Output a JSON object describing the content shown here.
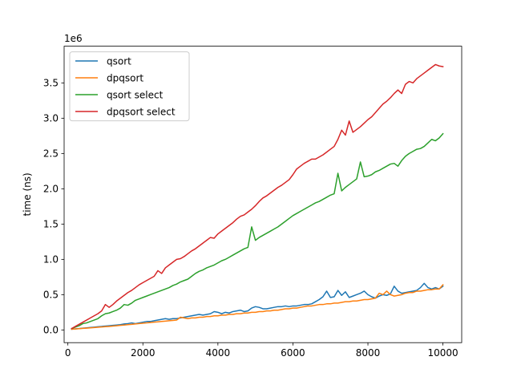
{
  "chart_data": {
    "type": "line",
    "title": "",
    "xlabel": "",
    "ylabel": "time (ns)",
    "y_scale_label": "1e6",
    "xlim": [
      -100,
      10500
    ],
    "ylim": [
      -0.18,
      4.02
    ],
    "xticks": [
      0,
      2000,
      4000,
      6000,
      8000,
      10000
    ],
    "xtick_labels": [
      "0",
      "2000",
      "4000",
      "6000",
      "8000",
      "10000"
    ],
    "yticks": [
      0.0,
      0.5,
      1.0,
      1.5,
      2.0,
      2.5,
      3.0,
      3.5
    ],
    "ytick_labels": [
      "0.0",
      "0.5",
      "1.0",
      "1.5",
      "2.0",
      "2.5",
      "3.0",
      "3.5"
    ],
    "grid": false,
    "legend_position": "upper-left",
    "x": [
      100,
      200,
      300,
      400,
      500,
      600,
      700,
      800,
      900,
      1000,
      1100,
      1200,
      1300,
      1400,
      1500,
      1600,
      1700,
      1800,
      1900,
      2000,
      2100,
      2200,
      2300,
      2400,
      2500,
      2600,
      2700,
      2800,
      2900,
      3000,
      3100,
      3200,
      3300,
      3400,
      3500,
      3600,
      3700,
      3800,
      3900,
      4000,
      4100,
      4200,
      4300,
      4400,
      4500,
      4600,
      4700,
      4800,
      4900,
      5000,
      5100,
      5200,
      5300,
      5400,
      5500,
      5600,
      5700,
      5800,
      5900,
      6000,
      6100,
      6200,
      6300,
      6400,
      6500,
      6600,
      6700,
      6800,
      6900,
      7000,
      7100,
      7200,
      7300,
      7400,
      7500,
      7600,
      7700,
      7800,
      7900,
      8000,
      8100,
      8200,
      8300,
      8400,
      8500,
      8600,
      8700,
      8800,
      8900,
      9000,
      9100,
      9200,
      9300,
      9400,
      9500,
      9600,
      9700,
      9800,
      9900,
      10000
    ],
    "series": [
      {
        "name": "qsort",
        "color": "#1f77b4",
        "values": [
          0.01,
          0.015,
          0.02,
          0.025,
          0.03,
          0.035,
          0.04,
          0.045,
          0.05,
          0.055,
          0.06,
          0.065,
          0.07,
          0.075,
          0.085,
          0.09,
          0.1,
          0.09,
          0.1,
          0.11,
          0.12,
          0.12,
          0.13,
          0.14,
          0.15,
          0.16,
          0.15,
          0.16,
          0.16,
          0.17,
          0.18,
          0.19,
          0.2,
          0.21,
          0.22,
          0.21,
          0.22,
          0.23,
          0.26,
          0.25,
          0.23,
          0.25,
          0.24,
          0.26,
          0.27,
          0.28,
          0.26,
          0.27,
          0.31,
          0.33,
          0.32,
          0.3,
          0.3,
          0.31,
          0.32,
          0.33,
          0.33,
          0.34,
          0.33,
          0.34,
          0.34,
          0.35,
          0.36,
          0.36,
          0.37,
          0.4,
          0.43,
          0.47,
          0.55,
          0.46,
          0.47,
          0.56,
          0.49,
          0.54,
          0.46,
          0.48,
          0.5,
          0.52,
          0.55,
          0.5,
          0.47,
          0.45,
          0.48,
          0.5,
          0.49,
          0.51,
          0.62,
          0.55,
          0.52,
          0.53,
          0.54,
          0.55,
          0.56,
          0.6,
          0.66,
          0.6,
          0.58,
          0.6,
          0.58,
          0.62
        ]
      },
      {
        "name": "dpqsort",
        "color": "#ff7f0e",
        "values": [
          0.01,
          0.014,
          0.018,
          0.022,
          0.026,
          0.03,
          0.034,
          0.038,
          0.042,
          0.046,
          0.05,
          0.055,
          0.06,
          0.065,
          0.07,
          0.075,
          0.08,
          0.085,
          0.09,
          0.095,
          0.1,
          0.105,
          0.11,
          0.115,
          0.12,
          0.125,
          0.13,
          0.135,
          0.14,
          0.18,
          0.17,
          0.16,
          0.17,
          0.17,
          0.18,
          0.18,
          0.19,
          0.19,
          0.2,
          0.2,
          0.21,
          0.21,
          0.22,
          0.22,
          0.23,
          0.23,
          0.24,
          0.24,
          0.25,
          0.25,
          0.26,
          0.26,
          0.27,
          0.27,
          0.28,
          0.28,
          0.29,
          0.3,
          0.3,
          0.31,
          0.31,
          0.32,
          0.33,
          0.34,
          0.34,
          0.35,
          0.36,
          0.36,
          0.37,
          0.37,
          0.38,
          0.38,
          0.39,
          0.4,
          0.4,
          0.41,
          0.41,
          0.42,
          0.43,
          0.43,
          0.44,
          0.45,
          0.52,
          0.5,
          0.55,
          0.5,
          0.48,
          0.49,
          0.5,
          0.52,
          0.53,
          0.53,
          0.55,
          0.55,
          0.56,
          0.57,
          0.57,
          0.58,
          0.58,
          0.64
        ]
      },
      {
        "name": "qsort select",
        "color": "#2ca02c",
        "values": [
          0.02,
          0.04,
          0.06,
          0.09,
          0.1,
          0.12,
          0.14,
          0.16,
          0.2,
          0.23,
          0.24,
          0.26,
          0.28,
          0.31,
          0.36,
          0.35,
          0.38,
          0.42,
          0.44,
          0.46,
          0.48,
          0.5,
          0.52,
          0.54,
          0.56,
          0.58,
          0.6,
          0.63,
          0.65,
          0.68,
          0.7,
          0.72,
          0.76,
          0.8,
          0.83,
          0.85,
          0.88,
          0.9,
          0.92,
          0.95,
          0.98,
          1.0,
          1.03,
          1.06,
          1.09,
          1.12,
          1.15,
          1.17,
          1.46,
          1.27,
          1.31,
          1.34,
          1.37,
          1.4,
          1.43,
          1.46,
          1.5,
          1.54,
          1.58,
          1.62,
          1.65,
          1.68,
          1.71,
          1.74,
          1.77,
          1.8,
          1.82,
          1.85,
          1.88,
          1.91,
          1.93,
          2.22,
          1.97,
          2.02,
          2.06,
          2.1,
          2.14,
          2.38,
          2.17,
          2.18,
          2.2,
          2.24,
          2.26,
          2.29,
          2.32,
          2.35,
          2.36,
          2.32,
          2.4,
          2.46,
          2.5,
          2.53,
          2.56,
          2.57,
          2.6,
          2.65,
          2.7,
          2.68,
          2.72,
          2.78
        ]
      },
      {
        "name": "dpqsort select",
        "color": "#d62728",
        "values": [
          0.02,
          0.05,
          0.08,
          0.11,
          0.14,
          0.17,
          0.2,
          0.23,
          0.27,
          0.36,
          0.32,
          0.36,
          0.41,
          0.45,
          0.49,
          0.53,
          0.56,
          0.6,
          0.64,
          0.67,
          0.7,
          0.73,
          0.76,
          0.84,
          0.8,
          0.88,
          0.92,
          0.96,
          1.0,
          1.01,
          1.04,
          1.08,
          1.12,
          1.15,
          1.19,
          1.23,
          1.27,
          1.31,
          1.3,
          1.36,
          1.4,
          1.44,
          1.48,
          1.52,
          1.57,
          1.61,
          1.63,
          1.67,
          1.71,
          1.76,
          1.82,
          1.87,
          1.9,
          1.94,
          1.98,
          2.02,
          2.05,
          2.09,
          2.13,
          2.2,
          2.28,
          2.32,
          2.36,
          2.39,
          2.42,
          2.42,
          2.45,
          2.48,
          2.52,
          2.56,
          2.6,
          2.7,
          2.83,
          2.76,
          2.96,
          2.8,
          2.84,
          2.88,
          2.93,
          2.98,
          3.02,
          3.08,
          3.14,
          3.2,
          3.24,
          3.29,
          3.35,
          3.4,
          3.35,
          3.48,
          3.52,
          3.5,
          3.56,
          3.6,
          3.64,
          3.68,
          3.72,
          3.76,
          3.74,
          3.73
        ]
      }
    ]
  }
}
